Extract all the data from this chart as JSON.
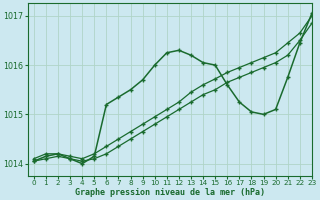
{
  "title": "Graphe pression niveau de la mer (hPa)",
  "bg_color": "#cce8f0",
  "grid_color": "#b0d4c8",
  "line_color": "#1a6b2e",
  "xlim": [
    -0.5,
    23
  ],
  "ylim": [
    1013.75,
    1017.25
  ],
  "yticks": [
    1014,
    1015,
    1016,
    1017
  ],
  "xticks": [
    0,
    1,
    2,
    3,
    4,
    5,
    6,
    7,
    8,
    9,
    10,
    11,
    12,
    13,
    14,
    15,
    16,
    17,
    18,
    19,
    20,
    21,
    22,
    23
  ],
  "series": [
    {
      "x": [
        0,
        1,
        2,
        3,
        4,
        5,
        6,
        7,
        8,
        9,
        10,
        11,
        12,
        13,
        14,
        15,
        16,
        17,
        18,
        19,
        20,
        21,
        22,
        23
      ],
      "y": [
        1014.05,
        1014.1,
        1014.15,
        1014.1,
        1014.05,
        1014.1,
        1014.2,
        1014.35,
        1014.5,
        1014.65,
        1014.8,
        1014.95,
        1015.1,
        1015.25,
        1015.4,
        1015.5,
        1015.65,
        1015.75,
        1015.85,
        1015.95,
        1016.05,
        1016.2,
        1016.5,
        1016.85
      ],
      "marker": "+",
      "ms": 3,
      "lw": 0.9
    },
    {
      "x": [
        0,
        1,
        2,
        3,
        4,
        5,
        6,
        7,
        8,
        9,
        10,
        11,
        12,
        13,
        14,
        15,
        16,
        17,
        18,
        19,
        20,
        21,
        22,
        23
      ],
      "y": [
        1014.1,
        1014.2,
        1014.2,
        1014.15,
        1014.1,
        1014.2,
        1014.35,
        1014.5,
        1014.65,
        1014.8,
        1014.95,
        1015.1,
        1015.25,
        1015.45,
        1015.6,
        1015.72,
        1015.85,
        1015.95,
        1016.05,
        1016.15,
        1016.25,
        1016.45,
        1016.65,
        1017.0
      ],
      "marker": "+",
      "ms": 3,
      "lw": 0.9
    },
    {
      "x": [
        0,
        1,
        2,
        3,
        4,
        5,
        6,
        7,
        8,
        9,
        10,
        11,
        12,
        13,
        14,
        15,
        16,
        17,
        18,
        19,
        20,
        21,
        22,
        23
      ],
      "y": [
        1014.05,
        1014.15,
        1014.2,
        1014.1,
        1014.0,
        1014.15,
        1015.2,
        1015.35,
        1015.5,
        1015.7,
        1016.0,
        1016.25,
        1016.3,
        1016.2,
        1016.05,
        1016.0,
        1015.6,
        1015.25,
        1015.05,
        1015.0,
        1015.1,
        1015.75,
        1016.45,
        1017.05
      ],
      "marker": "+",
      "ms": 3.5,
      "lw": 1.1
    }
  ]
}
